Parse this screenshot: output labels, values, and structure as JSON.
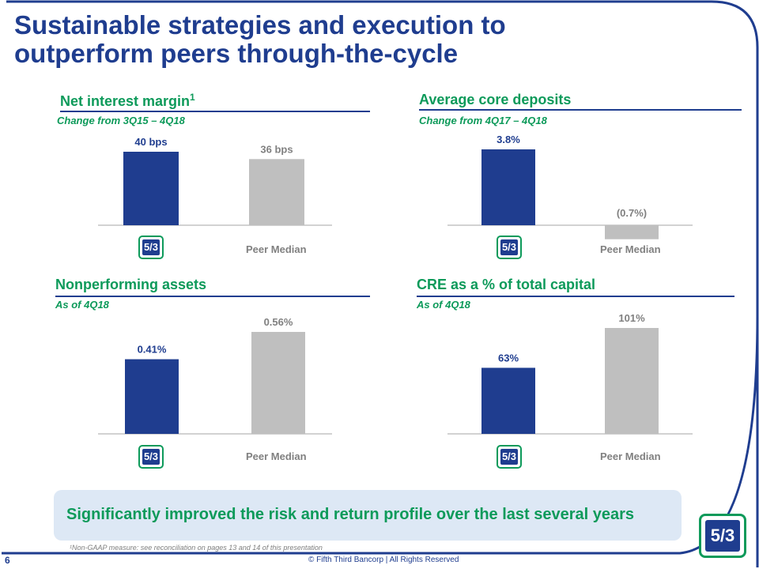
{
  "slide": {
    "title_line1": "Sustainable strategies and execution to",
    "title_line2": "outperform peers through-the-cycle",
    "banner": "Significantly improved the risk and return profile over the last several years",
    "footnote": "¹Non-GAAP measure: see reconciliation on pages 13 and 14 of this presentation",
    "page_number": "6",
    "copyright": "© Fifth Third Bancorp | All Rights Reserved",
    "logo_text": "5/3",
    "colors": {
      "brand_blue": "#1f3d8f",
      "brand_green": "#0d9a5a",
      "peer_gray": "#bfbfbf",
      "banner_bg": "#dde8f5"
    }
  },
  "chart_data": [
    {
      "type": "bar",
      "title": "Net interest margin",
      "title_sup": "1",
      "subtitle": "Change from 3Q15 – 4Q18",
      "categories": [
        "Fifth Third",
        "Peer Median"
      ],
      "category_display": [
        "",
        "Peer Median"
      ],
      "values": [
        40,
        36
      ],
      "value_labels": [
        "40 bps",
        "36 bps"
      ],
      "ylim": [
        0,
        40
      ]
    },
    {
      "type": "bar",
      "title": "Average core deposits",
      "subtitle": "Change from 4Q17 – 4Q18",
      "categories": [
        "Fifth Third",
        "Peer Median"
      ],
      "category_display": [
        "",
        "Peer Median"
      ],
      "values": [
        3.8,
        -0.7
      ],
      "value_labels": [
        "3.8%",
        "(0.7%)"
      ],
      "ylim": [
        -0.7,
        3.8
      ]
    },
    {
      "type": "bar",
      "title": "Nonperforming assets",
      "subtitle": "As of 4Q18",
      "categories": [
        "Fifth Third",
        "Peer Median"
      ],
      "category_display": [
        "",
        "Peer Median"
      ],
      "values": [
        0.41,
        0.56
      ],
      "value_labels": [
        "0.41%",
        "0.56%"
      ],
      "ylim": [
        0,
        0.56
      ]
    },
    {
      "type": "bar",
      "title": "CRE as a % of total capital",
      "subtitle": "As of 4Q18",
      "categories": [
        "Fifth Third",
        "Peer Median"
      ],
      "category_display": [
        "",
        "Peer Median"
      ],
      "values": [
        63,
        101
      ],
      "value_labels": [
        "63%",
        "101%"
      ],
      "ylim": [
        0,
        101
      ]
    }
  ]
}
